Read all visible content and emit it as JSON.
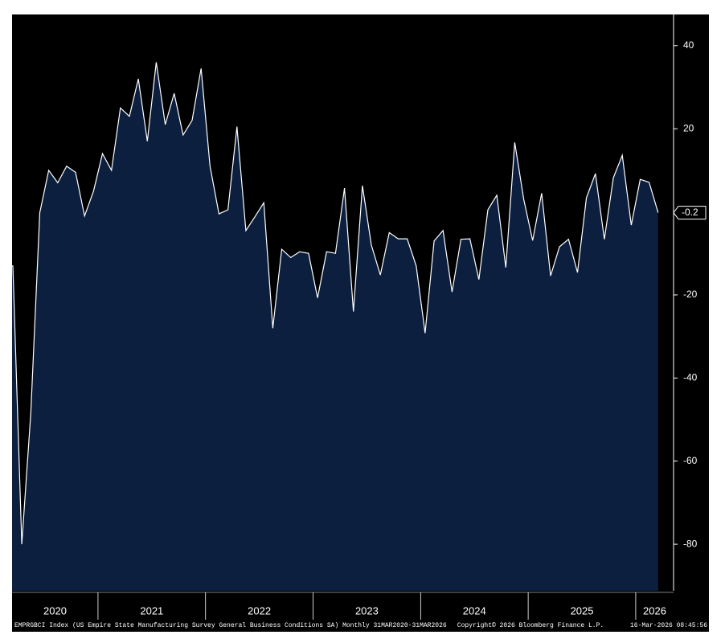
{
  "chart_data": {
    "type": "area",
    "years": [
      "2020",
      "2021",
      "2022",
      "2023",
      "2024",
      "2025",
      "2026"
    ],
    "values": [
      -13,
      -80,
      -48.5,
      -0.2,
      10,
      7,
      11,
      9.5,
      -1,
      5,
      14,
      10,
      25,
      23,
      32,
      17,
      36,
      21,
      28.5,
      18.5,
      22,
      34.5,
      11,
      -0.5,
      0.5,
      20.5,
      -4.5,
      -1.2,
      2.2,
      -28,
      -9,
      -11,
      -9.6,
      -10,
      -20.7,
      -9.6,
      -10,
      5.7,
      -24,
      6.3,
      -8,
      -15.2,
      -5,
      -6.5,
      -6.5,
      -13,
      -29.2,
      -7,
      -4.5,
      -19.3,
      -6.6,
      -6.5,
      -16.3,
      0.5,
      4,
      -13.4,
      16.7,
      3,
      -6.9,
      4.5,
      -15.4,
      -8.4,
      -6.6,
      -14.6,
      3.4,
      9.2,
      -6.6,
      8.2,
      13.6,
      -3.2,
      7.8,
      7.1,
      -0.2
    ],
    "last_value_label": "-0.2",
    "ylim": [
      -91.2,
      47.5
    ],
    "yticks": [
      -80,
      -60,
      -40,
      -20,
      20,
      40
    ],
    "line_color": "#ffffff",
    "fill_color": "#0c1f3f",
    "background": "#000000",
    "footer_left": "EMPRGBCI Index (US Empire State Manufacturing Survey General Business Conditions SA) Monthly 31MAR2020-31MAR2026",
    "footer_center": "Copyright© 2026 Bloomberg Finance L.P.",
    "footer_right": "16-Mar-2026 08:45:56"
  }
}
